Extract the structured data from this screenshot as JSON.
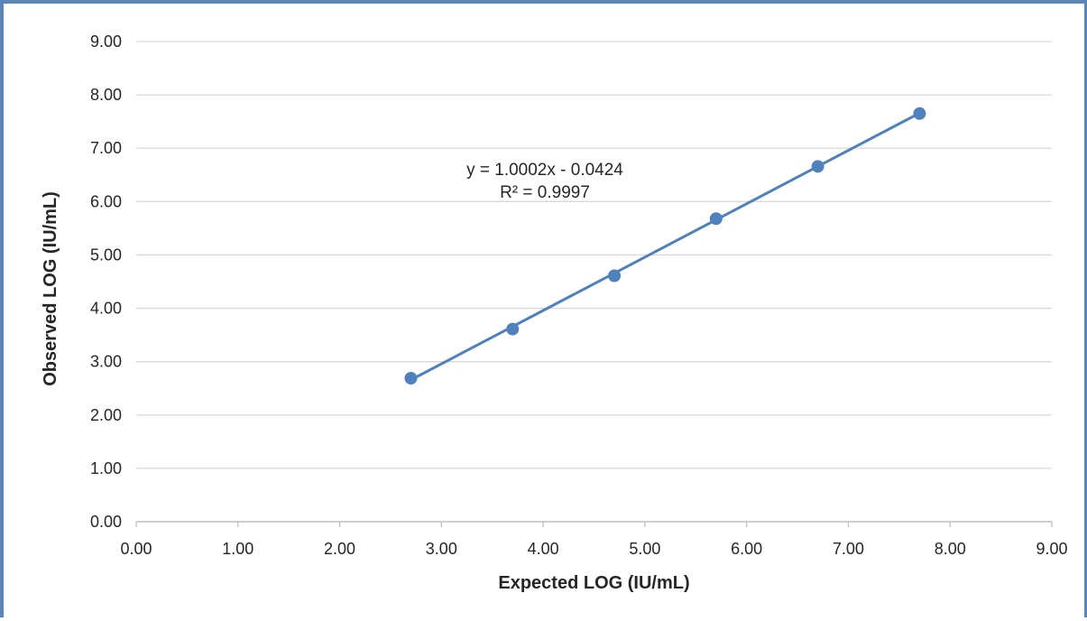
{
  "chart_data": {
    "type": "scatter",
    "xlabel": "Expected LOG (IU/mL)",
    "ylabel": "Observed LOG (IU/mL)",
    "xlim": [
      0,
      9
    ],
    "ylim": [
      0,
      9
    ],
    "xticks": [
      "0.00",
      "1.00",
      "2.00",
      "3.00",
      "4.00",
      "5.00",
      "6.00",
      "7.00",
      "8.00",
      "9.00"
    ],
    "yticks": [
      "0.00",
      "1.00",
      "2.00",
      "3.00",
      "4.00",
      "5.00",
      "6.00",
      "7.00",
      "8.00",
      "9.00"
    ],
    "grid": true,
    "legend": "none",
    "series": [
      {
        "x": [
          2.7,
          3.7,
          4.7,
          5.7,
          6.7,
          7.7
        ],
        "y": [
          2.69,
          3.61,
          4.61,
          5.68,
          6.66,
          7.65
        ],
        "color": "#4f81bd"
      }
    ],
    "trendline": {
      "slope": 1.0002,
      "intercept": -0.0424,
      "x_range": [
        2.7,
        7.7
      ],
      "equation": "y = 1.0002x - 0.0424",
      "r_squared": "R² = 0.9997",
      "color": "#4f81bd"
    }
  }
}
